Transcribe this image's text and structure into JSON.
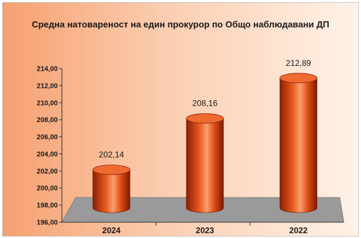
{
  "chart_data": {
    "type": "bar",
    "title": "Средна натовареност на един прокурор по Общо наблюдавани ДП",
    "categories": [
      "2024",
      "2023",
      "2022"
    ],
    "values": [
      202.14,
      208.16,
      212.89
    ],
    "data_labels": [
      "202,14",
      "208,16",
      "212,89"
    ],
    "ylim": [
      196,
      214
    ],
    "yticks": [
      "196,00",
      "198,00",
      "200,00",
      "202,00",
      "204,00",
      "206,00",
      "208,00",
      "210,00",
      "212,00",
      "214,00"
    ],
    "xlabel": "",
    "ylabel": "",
    "legend": "none",
    "grid": false,
    "colors": {
      "bar_dark": "#8c1e05",
      "bar_mid": "#e85a1e",
      "bar_light": "#f8a070",
      "bar_top": "#f06a30",
      "floor": "#9a9a9a"
    }
  }
}
